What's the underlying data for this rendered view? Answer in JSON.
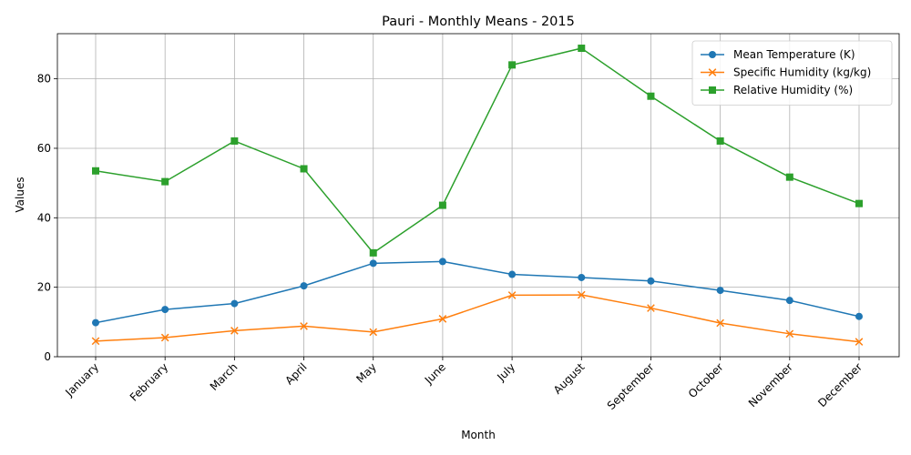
{
  "chart_data": {
    "type": "line",
    "title": "Pauri - Monthly Means - 2015",
    "xlabel": "Month",
    "ylabel": "Values",
    "categories": [
      "January",
      "February",
      "March",
      "April",
      "May",
      "June",
      "July",
      "August",
      "September",
      "October",
      "November",
      "December"
    ],
    "ylim": [
      0,
      93
    ],
    "yticks": [
      0,
      20,
      40,
      60,
      80
    ],
    "grid": true,
    "legend_position": "top-right",
    "series": [
      {
        "name": "Mean Temperature (K)",
        "color": "#1f77b4",
        "marker": "circle",
        "values": [
          9.8,
          13.6,
          15.3,
          20.4,
          26.9,
          27.4,
          23.7,
          22.8,
          21.8,
          19.1,
          16.2,
          11.6
        ]
      },
      {
        "name": "Specific Humidity (kg/kg)",
        "color": "#ff7f0e",
        "marker": "x",
        "values": [
          4.5,
          5.5,
          7.5,
          8.8,
          7.1,
          10.9,
          17.7,
          17.8,
          14.0,
          9.7,
          6.6,
          4.3
        ]
      },
      {
        "name": "Relative Humidity (%)",
        "color": "#2ca02c",
        "marker": "square",
        "values": [
          53.5,
          50.4,
          62.1,
          54.1,
          29.9,
          43.6,
          84.0,
          88.8,
          75.0,
          62.1,
          51.7,
          44.1
        ]
      }
    ]
  }
}
